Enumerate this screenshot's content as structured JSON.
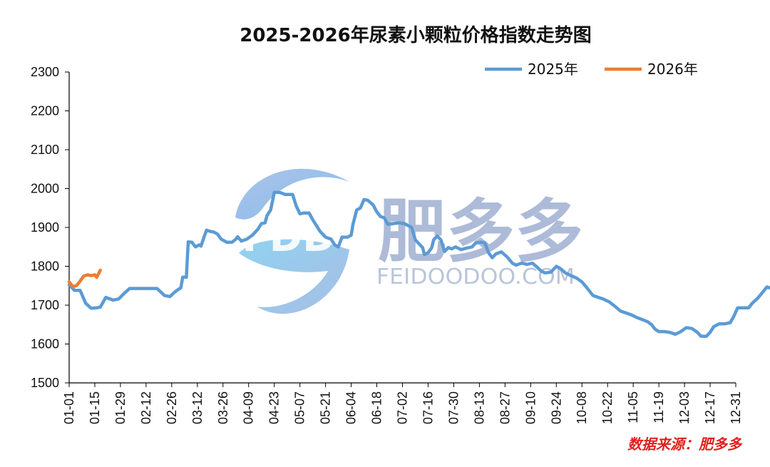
{
  "chart_data": {
    "type": "line",
    "title": "2025-2026年尿素小颗粒价格指数走势图",
    "xlabel": "",
    "ylabel": "",
    "ylim": [
      1500,
      2300
    ],
    "yticks": [
      1500,
      1600,
      1700,
      1800,
      1900,
      2000,
      2100,
      2200,
      2300
    ],
    "x_tick_labels": [
      "01-01",
      "01-15",
      "01-29",
      "02-12",
      "02-26",
      "03-12",
      "03-26",
      "04-09",
      "04-23",
      "05-07",
      "05-21",
      "06-04",
      "06-18",
      "07-02",
      "07-16",
      "07-30",
      "08-13",
      "08-27",
      "09-10",
      "09-24",
      "10-08",
      "10-22",
      "11-05",
      "11-19",
      "12-03",
      "12-17",
      "12-31"
    ],
    "legend_position": "top-right",
    "grid": false,
    "series": [
      {
        "name": "2025年",
        "color": "#5b9bd5",
        "points": [
          [
            0,
            1752
          ],
          [
            3,
            1738
          ],
          [
            6,
            1738
          ],
          [
            9,
            1705
          ],
          [
            12,
            1692
          ],
          [
            15,
            1693
          ],
          [
            17,
            1695
          ],
          [
            20,
            1720
          ],
          [
            24,
            1713
          ],
          [
            27,
            1716
          ],
          [
            30,
            1730
          ],
          [
            33,
            1743
          ],
          [
            36,
            1743
          ],
          [
            39,
            1743
          ],
          [
            42,
            1743
          ],
          [
            45,
            1743
          ],
          [
            48,
            1743
          ],
          [
            52,
            1725
          ],
          [
            55,
            1722
          ],
          [
            58,
            1735
          ],
          [
            61,
            1745
          ],
          [
            62,
            1772
          ],
          [
            64,
            1772
          ],
          [
            65,
            1863
          ],
          [
            67,
            1862
          ],
          [
            69,
            1850
          ],
          [
            71,
            1855
          ],
          [
            72,
            1852
          ],
          [
            74,
            1880
          ],
          [
            75,
            1893
          ],
          [
            77,
            1890
          ],
          [
            79,
            1888
          ],
          [
            81,
            1883
          ],
          [
            83,
            1870
          ],
          [
            86,
            1862
          ],
          [
            89,
            1862
          ],
          [
            91,
            1870
          ],
          [
            92,
            1876
          ],
          [
            94,
            1865
          ],
          [
            97,
            1870
          ],
          [
            100,
            1880
          ],
          [
            103,
            1895
          ],
          [
            105,
            1910
          ],
          [
            107,
            1912
          ],
          [
            108,
            1930
          ],
          [
            110,
            1945
          ],
          [
            112,
            1990
          ],
          [
            115,
            1990
          ],
          [
            118,
            1985
          ],
          [
            122,
            1985
          ],
          [
            124,
            1955
          ],
          [
            126,
            1935
          ],
          [
            128,
            1937
          ],
          [
            131,
            1937
          ],
          [
            133,
            1920
          ],
          [
            135,
            1905
          ],
          [
            137,
            1890
          ],
          [
            140,
            1875
          ],
          [
            143,
            1870
          ],
          [
            145,
            1855
          ],
          [
            147,
            1850
          ],
          [
            149,
            1875
          ],
          [
            152,
            1875
          ],
          [
            154,
            1880
          ],
          [
            155,
            1908
          ],
          [
            157,
            1945
          ],
          [
            159,
            1950
          ],
          [
            161,
            1972
          ],
          [
            163,
            1970
          ],
          [
            166,
            1958
          ],
          [
            168,
            1940
          ],
          [
            170,
            1928
          ],
          [
            172,
            1925
          ],
          [
            174,
            1908
          ],
          [
            177,
            1910
          ],
          [
            180,
            1912
          ],
          [
            183,
            1910
          ],
          [
            185,
            1905
          ],
          [
            187,
            1900
          ],
          [
            189,
            1868
          ],
          [
            191,
            1858
          ],
          [
            193,
            1848
          ],
          [
            194,
            1830
          ],
          [
            196,
            1835
          ],
          [
            198,
            1848
          ],
          [
            199,
            1868
          ],
          [
            201,
            1878
          ],
          [
            203,
            1868
          ],
          [
            205,
            1838
          ],
          [
            207,
            1848
          ],
          [
            209,
            1845
          ],
          [
            211,
            1850
          ],
          [
            214,
            1843
          ],
          [
            217,
            1847
          ],
          [
            220,
            1850
          ],
          [
            222,
            1860
          ],
          [
            225,
            1862
          ],
          [
            227,
            1860
          ],
          [
            229,
            1835
          ],
          [
            231,
            1822
          ],
          [
            233,
            1832
          ],
          [
            236,
            1837
          ],
          [
            239,
            1825
          ],
          [
            242,
            1808
          ],
          [
            244,
            1803
          ],
          [
            247,
            1808
          ],
          [
            250,
            1805
          ],
          [
            253,
            1808
          ],
          [
            255,
            1800
          ],
          [
            258,
            1787
          ],
          [
            260,
            1783
          ],
          [
            263,
            1785
          ],
          [
            266,
            1800
          ],
          [
            268,
            1795
          ],
          [
            271,
            1783
          ],
          [
            274,
            1776
          ],
          [
            277,
            1770
          ],
          [
            280,
            1760
          ],
          [
            283,
            1743
          ],
          [
            286,
            1725
          ],
          [
            289,
            1720
          ],
          [
            292,
            1715
          ],
          [
            295,
            1708
          ],
          [
            298,
            1697
          ],
          [
            301,
            1685
          ],
          [
            304,
            1680
          ],
          [
            307,
            1675
          ],
          [
            310,
            1668
          ],
          [
            313,
            1663
          ],
          [
            316,
            1657
          ],
          [
            318,
            1650
          ],
          [
            320,
            1638
          ],
          [
            322,
            1632
          ],
          [
            325,
            1632
          ],
          [
            328,
            1630
          ],
          [
            331,
            1625
          ],
          [
            334,
            1632
          ],
          [
            337,
            1642
          ],
          [
            340,
            1640
          ],
          [
            343,
            1630
          ],
          [
            345,
            1620
          ],
          [
            348,
            1620
          ],
          [
            350,
            1630
          ],
          [
            352,
            1645
          ],
          [
            355,
            1652
          ],
          [
            358,
            1652
          ],
          [
            361,
            1655
          ],
          [
            363,
            1672
          ],
          [
            365,
            1693
          ],
          [
            368,
            1693
          ],
          [
            371,
            1693
          ],
          [
            373,
            1705
          ],
          [
            376,
            1718
          ],
          [
            379,
            1735
          ],
          [
            381,
            1747
          ],
          [
            384,
            1742
          ],
          [
            387,
            1733
          ],
          [
            390,
            1738
          ],
          [
            393,
            1732
          ],
          [
            396,
            1732
          ],
          [
            398,
            1740
          ],
          [
            401,
            1745
          ],
          [
            404,
            1747
          ],
          [
            406,
            1752
          ],
          [
            409,
            1753
          ],
          [
            412,
            1748
          ],
          [
            414,
            1748
          ]
        ]
      },
      {
        "name": "2026年",
        "color": "#ed7d31",
        "points": [
          [
            0,
            1760
          ],
          [
            2,
            1748
          ],
          [
            4,
            1750
          ],
          [
            6,
            1762
          ],
          [
            8,
            1775
          ],
          [
            10,
            1778
          ],
          [
            12,
            1776
          ],
          [
            14,
            1778
          ],
          [
            15,
            1772
          ],
          [
            16,
            1780
          ],
          [
            17,
            1790
          ]
        ]
      }
    ]
  },
  "watermark": {
    "logo_text": "FDD",
    "name": "肥多多",
    "url": "FEIDOODOO.COM"
  },
  "source_note": "数据来源：肥多多"
}
